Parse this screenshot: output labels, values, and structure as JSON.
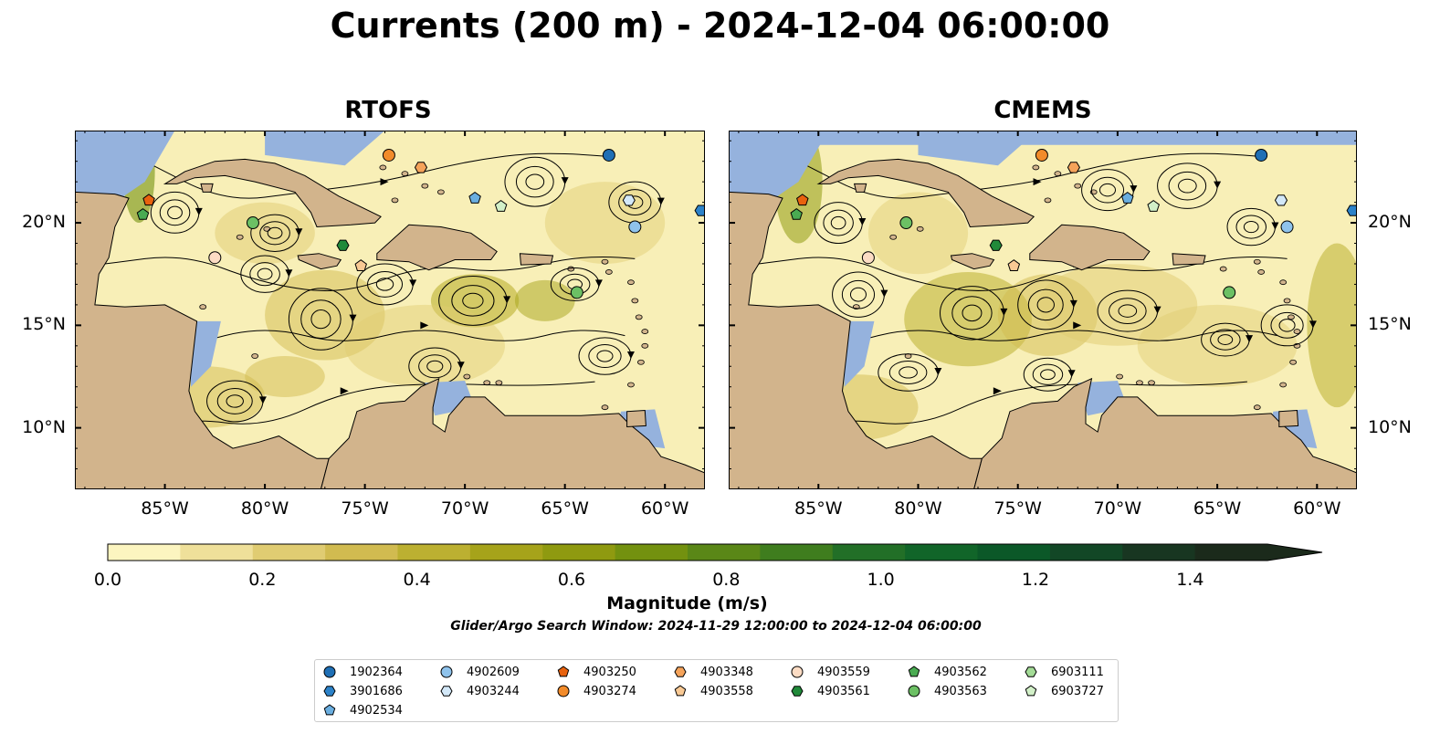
{
  "title": "Currents (200 m) - 2024-12-04 06:00:00",
  "panels": [
    {
      "title": "RTOFS",
      "side": "left"
    },
    {
      "title": "CMEMS",
      "side": "right"
    }
  ],
  "map": {
    "lon_range": [
      -89.5,
      -58.0
    ],
    "lat_range": [
      7.0,
      24.5
    ],
    "lon_ticks": [
      "85°W",
      "80°W",
      "75°W",
      "70°W",
      "65°W",
      "60°W"
    ],
    "lon_tick_values": [
      -85,
      -80,
      -75,
      -70,
      -65,
      -60
    ],
    "lat_ticks": [
      "20°N",
      "15°N",
      "10°N"
    ],
    "lat_tick_values": [
      20,
      15,
      10
    ],
    "colors": {
      "land": "#d2b48c",
      "ocean_deep": "#f8efb7",
      "shelf": "#95b2dd",
      "border": "#000000"
    }
  },
  "colorbar": {
    "label": "Magnitude (m/s)",
    "ticks": [
      "0.0",
      "0.2",
      "0.4",
      "0.6",
      "0.8",
      "1.0",
      "1.2",
      "1.4"
    ],
    "tick_values": [
      0.0,
      0.2,
      0.4,
      0.6,
      0.8,
      1.0,
      1.2,
      1.4
    ],
    "max": 1.5,
    "colors": [
      "#fcf5c0",
      "#efe09a",
      "#e0cc72",
      "#d1bb50",
      "#bcb031",
      "#a6a31a",
      "#8f9a10",
      "#73910f",
      "#5a8717",
      "#3f7d1e",
      "#226f27",
      "#116529",
      "#0b5828",
      "#124726",
      "#183621",
      "#1b2a1b"
    ]
  },
  "search_window": "Glider/Argo Search Window: 2024-11-29 12:00:00 to 2024-12-04 06:00:00",
  "legend": [
    {
      "id": "1902364",
      "color": "#1f6fb5",
      "marker": "circle"
    },
    {
      "id": "3901686",
      "color": "#2c82c9",
      "marker": "hexagon"
    },
    {
      "id": "4902534",
      "color": "#6aaee0",
      "marker": "pentagon"
    },
    {
      "id": "4902609",
      "color": "#8fc3ec",
      "marker": "circle"
    },
    {
      "id": "4903244",
      "color": "#d3e8f8",
      "marker": "hexagon"
    },
    {
      "id": "4903250",
      "color": "#e8620e",
      "marker": "pentagon"
    },
    {
      "id": "4903274",
      "color": "#f28b2a",
      "marker": "circle"
    },
    {
      "id": "4903348",
      "color": "#f5a35a",
      "marker": "hexagon"
    },
    {
      "id": "4903558",
      "color": "#f9c994",
      "marker": "pentagon"
    },
    {
      "id": "4903559",
      "color": "#fcdcc4",
      "marker": "circle"
    },
    {
      "id": "4903561",
      "color": "#218a3a",
      "marker": "hexagon"
    },
    {
      "id": "4903562",
      "color": "#4aab52",
      "marker": "pentagon"
    },
    {
      "id": "4903563",
      "color": "#6cc064",
      "marker": "circle"
    },
    {
      "id": "6903111",
      "color": "#a3db96",
      "marker": "hexagon"
    },
    {
      "id": "6903727",
      "color": "#d2f0c8",
      "marker": "pentagon"
    }
  ],
  "floats_on_map": [
    {
      "id": "1902364",
      "lon": -62.8,
      "lat": 23.3
    },
    {
      "id": "3901686",
      "lon": -58.2,
      "lat": 20.6
    },
    {
      "id": "4902534",
      "lon": -69.5,
      "lat": 21.2
    },
    {
      "id": "4902609",
      "lon": -61.5,
      "lat": 19.8
    },
    {
      "id": "4903244",
      "lon": -61.8,
      "lat": 21.1
    },
    {
      "id": "4903250",
      "lon": -85.8,
      "lat": 21.1
    },
    {
      "id": "4903274",
      "lon": -73.8,
      "lat": 23.3
    },
    {
      "id": "4903348",
      "lon": -72.2,
      "lat": 22.7
    },
    {
      "id": "4903558",
      "lon": -75.2,
      "lat": 17.9
    },
    {
      "id": "4903559",
      "lon": -82.5,
      "lat": 18.3
    },
    {
      "id": "4903561",
      "lon": -76.1,
      "lat": 18.9
    },
    {
      "id": "4903562",
      "lon": -86.1,
      "lat": 20.4
    },
    {
      "id": "4903563",
      "lon": -64.4,
      "lat": 16.6
    },
    {
      "id": "4903563",
      "lon": -80.6,
      "lat": 20.0
    },
    {
      "id": "6903727",
      "lon": -68.2,
      "lat": 20.8
    }
  ]
}
